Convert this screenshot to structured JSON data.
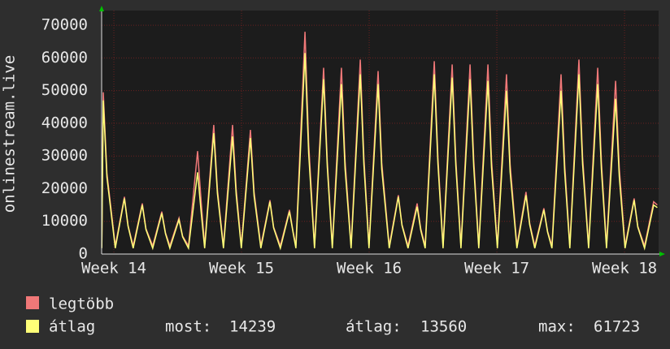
{
  "chart_data": {
    "type": "line",
    "ylabel": "onlinestream.live",
    "xlim": [
      -0.67,
      29.87
    ],
    "xticks": [
      {
        "value": 0,
        "label": "Week 14"
      },
      {
        "value": 7,
        "label": "Week 15"
      },
      {
        "value": 14,
        "label": "Week 16"
      },
      {
        "value": 21,
        "label": "Week 17"
      },
      {
        "value": 28,
        "label": "Week 18"
      }
    ],
    "ylim": [
      0,
      74500
    ],
    "yticks": [
      0,
      10000,
      20000,
      30000,
      40000,
      50000,
      60000,
      70000
    ],
    "grid": true,
    "x": [
      -0.66,
      -0.58,
      -0.38,
      0.08,
      0.58,
      0.78,
      1.06,
      1.56,
      1.76,
      2.13,
      2.63,
      2.83,
      3.07,
      3.57,
      3.77,
      4.09,
      4.59,
      4.79,
      4.98,
      5.48,
      5.68,
      6.01,
      6.51,
      6.71,
      6.99,
      7.49,
      7.69,
      8.06,
      8.56,
      8.76,
      9.13,
      9.63,
      9.83,
      9.98,
      10.48,
      10.68,
      11.0,
      11.5,
      11.7,
      11.98,
      12.48,
      12.68,
      13.01,
      13.51,
      13.71,
      13.99,
      14.49,
      14.69,
      15.1,
      15.6,
      15.8,
      16.13,
      16.63,
      16.83,
      17.07,
      17.57,
      17.77,
      18.05,
      18.55,
      18.75,
      19.03,
      19.53,
      19.73,
      20.01,
      20.51,
      20.71,
      21.03,
      21.53,
      21.73,
      22.1,
      22.6,
      22.8,
      23.08,
      23.58,
      23.78,
      24.02,
      24.52,
      24.72,
      25.0,
      25.5,
      25.7,
      26.03,
      26.53,
      26.73,
      27.01,
      27.51,
      27.71,
      28.03,
      28.53,
      28.73,
      29.1,
      29.6,
      29.8
    ],
    "series": [
      {
        "name": "legtöbb",
        "color": "#f07878",
        "values": [
          2500,
          49500,
          24750,
          2500,
          17500,
          8750,
          2500,
          15500,
          7750,
          2500,
          13000,
          6500,
          2500,
          11000,
          5500,
          2500,
          31500,
          15750,
          2500,
          39500,
          19750,
          2500,
          39500,
          19750,
          2500,
          38000,
          19000,
          2500,
          16500,
          8250,
          2500,
          13500,
          6750,
          2500,
          68000,
          34000,
          2500,
          57000,
          28500,
          2500,
          57000,
          28500,
          2500,
          59500,
          29750,
          2500,
          56000,
          28000,
          2500,
          18000,
          9000,
          2500,
          15500,
          7750,
          2500,
          59000,
          29500,
          2500,
          58000,
          29000,
          2500,
          58000,
          29000,
          2500,
          58000,
          29000,
          2500,
          55000,
          27500,
          2500,
          19000,
          9500,
          2500,
          14000,
          7000,
          2500,
          55000,
          27500,
          2500,
          59500,
          29750,
          2500,
          57000,
          28500,
          2500,
          53000,
          26500,
          2500,
          17000,
          8500,
          2500,
          16000,
          15000
        ]
      },
      {
        "name": "átlag",
        "color": "#ffff78",
        "values": [
          1800,
          47000,
          23500,
          1800,
          17000,
          8500,
          1800,
          15000,
          7500,
          1800,
          12500,
          6250,
          1800,
          10500,
          5250,
          1800,
          25000,
          12500,
          1800,
          37000,
          18500,
          1800,
          36000,
          18000,
          1800,
          35500,
          17750,
          1800,
          16000,
          8000,
          1800,
          13000,
          6500,
          1800,
          61500,
          30750,
          1800,
          53500,
          26750,
          1800,
          52000,
          26000,
          1800,
          55000,
          27500,
          1800,
          52000,
          26000,
          1800,
          17500,
          8750,
          1800,
          14500,
          7250,
          1800,
          55000,
          27500,
          1800,
          54000,
          27000,
          1800,
          53500,
          26750,
          1800,
          53000,
          26500,
          1800,
          50000,
          25000,
          1800,
          18000,
          9000,
          1800,
          13500,
          6750,
          1800,
          50000,
          25000,
          1800,
          55000,
          27500,
          1800,
          52000,
          26000,
          1800,
          47500,
          23750,
          1800,
          16500,
          8250,
          1800,
          15000,
          14239
        ]
      }
    ],
    "stats": [
      {
        "label": "most:",
        "value": 14239
      },
      {
        "label": "átlag:",
        "value": 13560
      },
      {
        "label": "max:",
        "value": 61723
      }
    ]
  }
}
